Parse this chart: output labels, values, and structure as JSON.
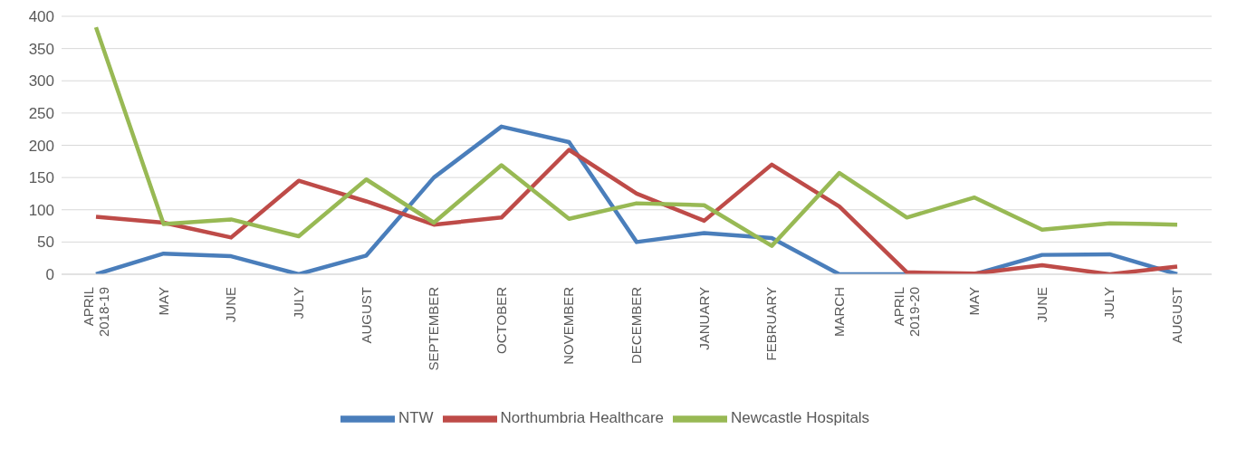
{
  "chart_data": {
    "type": "line",
    "categories": [
      "APRIL\n2018-19",
      "MAY",
      "JUNE",
      "JULY",
      "AUGUST",
      "SEPTEMBER",
      "OCTOBER",
      "NOVEMBER",
      "DECEMBER",
      "JANUARY",
      "FEBRUARY",
      "MARCH",
      "APRIL\n2019-20",
      "MAY",
      "JUNE",
      "JULY",
      "AUGUST"
    ],
    "series": [
      {
        "name": "NTW",
        "color": "#4a7ebb",
        "values": [
          0,
          32,
          28,
          0,
          29,
          150,
          229,
          205,
          50,
          64,
          56,
          0,
          0,
          0,
          30,
          31,
          0
        ]
      },
      {
        "name": "Northumbria Healthcare",
        "color": "#be4b48",
        "values": [
          89,
          80,
          57,
          145,
          113,
          77,
          88,
          193,
          125,
          83,
          170,
          105,
          3,
          1,
          14,
          0,
          12
        ]
      },
      {
        "name": "Newcastle Hospitals",
        "color": "#98b954",
        "values": [
          383,
          78,
          85,
          59,
          147,
          80,
          169,
          86,
          110,
          107,
          44,
          157,
          88,
          119,
          69,
          79,
          77
        ]
      }
    ],
    "ylim": [
      0,
      400
    ],
    "yticks": [
      0,
      50,
      100,
      150,
      200,
      250,
      300,
      350,
      400
    ],
    "grid": "y",
    "legend": "bottom",
    "marker": "none",
    "line_style": "solid"
  }
}
